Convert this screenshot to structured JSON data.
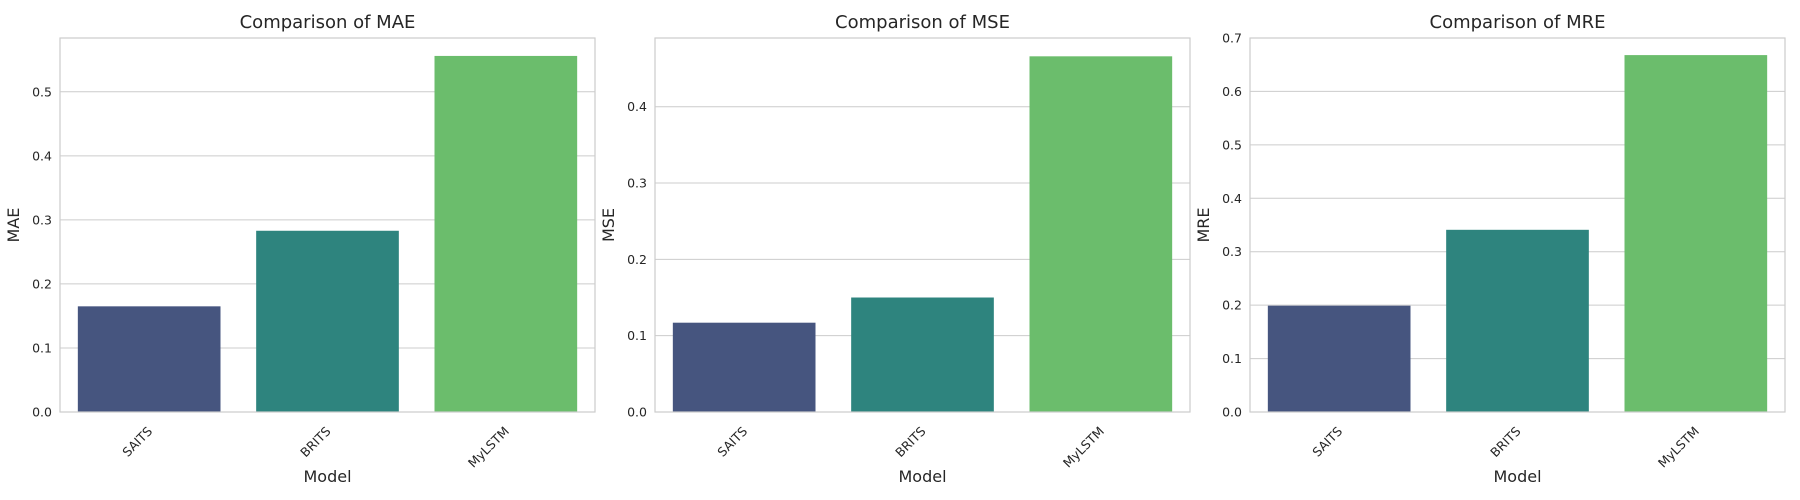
{
  "chart_data": [
    {
      "type": "bar",
      "title": "Comparison of MAE",
      "xlabel": "Model",
      "ylabel": "MAE",
      "categories": [
        "SAITS",
        "BRITS",
        "MyLSTM"
      ],
      "values": [
        0.165,
        0.283,
        0.556
      ],
      "ylim": [
        0,
        0.584
      ],
      "yticks": [
        0.0,
        0.1,
        0.2,
        0.3,
        0.4,
        0.5
      ],
      "grid": true,
      "colors": [
        "#46557f",
        "#2e847e",
        "#6bbd6c"
      ]
    },
    {
      "type": "bar",
      "title": "Comparison of MSE",
      "xlabel": "Model",
      "ylabel": "MSE",
      "categories": [
        "SAITS",
        "BRITS",
        "MyLSTM"
      ],
      "values": [
        0.117,
        0.15,
        0.466
      ],
      "ylim": [
        0,
        0.49
      ],
      "yticks": [
        0.0,
        0.1,
        0.2,
        0.3,
        0.4
      ],
      "grid": true,
      "colors": [
        "#46557f",
        "#2e847e",
        "#6bbd6c"
      ]
    },
    {
      "type": "bar",
      "title": "Comparison of MRE",
      "xlabel": "Model",
      "ylabel": "MRE",
      "categories": [
        "SAITS",
        "BRITS",
        "MyLSTM"
      ],
      "values": [
        0.199,
        0.341,
        0.668
      ],
      "ylim": [
        0,
        0.7
      ],
      "yticks": [
        0.0,
        0.1,
        0.2,
        0.3,
        0.4,
        0.5,
        0.6,
        0.7
      ],
      "grid": true,
      "colors": [
        "#46557f",
        "#2e847e",
        "#6bbd6c"
      ]
    }
  ]
}
